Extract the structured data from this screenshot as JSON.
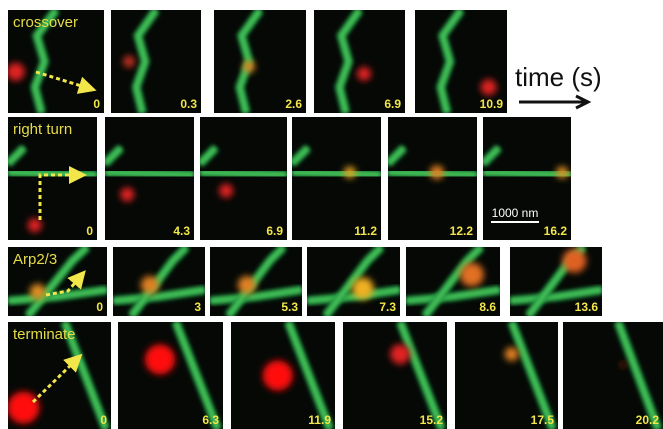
{
  "rows": [
    {
      "label": "crossover",
      "times": [
        "0",
        "0.3",
        "2.6",
        "6.9",
        "10.9"
      ]
    },
    {
      "label": "right turn",
      "times": [
        "0",
        "4.3",
        "6.9",
        "11.2",
        "12.2",
        "16.2"
      ]
    },
    {
      "label": "Arp2/3",
      "times": [
        "0",
        "3",
        "5.3",
        "7.3",
        "8.6",
        "13.6"
      ]
    },
    {
      "label": "terminate",
      "times": [
        "0",
        "6.3",
        "11.9",
        "15.2",
        "17.5",
        "20.2"
      ]
    }
  ],
  "axis_label": "time (s)",
  "scale_bar": "1000 nm"
}
